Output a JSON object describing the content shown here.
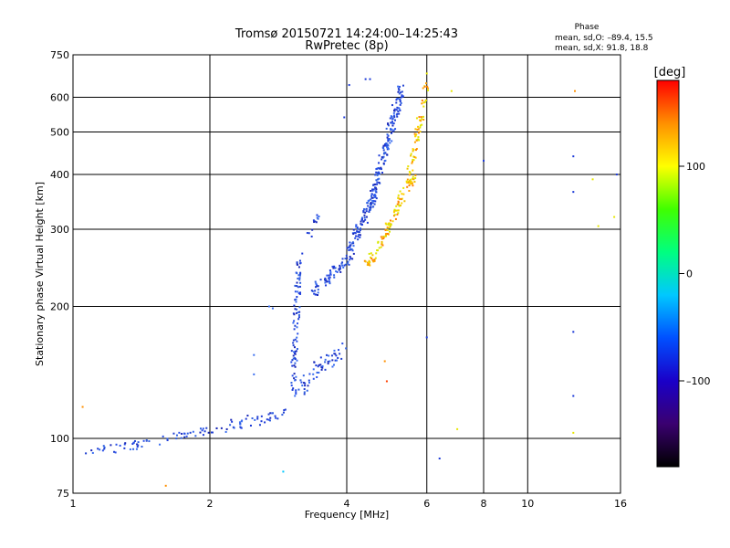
{
  "chart_data": {
    "type": "scatter",
    "title": "Tromsø 20150721 14:24:00–14:25:43",
    "subtitle": "RwPretec (8p)",
    "xlabel": "Frequency [MHz]",
    "ylabel": "Stationary phase Virtual Height [km]",
    "x_scale": "log",
    "y_scale": "log",
    "xlim": [
      1,
      16
    ],
    "ylim": [
      75,
      750
    ],
    "x_ticks": [
      1,
      2,
      4,
      6,
      8,
      10,
      16
    ],
    "x_tick_labels": [
      "1",
      "2",
      "4",
      "6",
      "8",
      "10",
      "16"
    ],
    "x_grid": [
      2,
      4,
      6,
      8,
      10
    ],
    "y_ticks": [
      75,
      100,
      200,
      300,
      400,
      500,
      600,
      750
    ],
    "y_tick_labels": [
      "75",
      "100",
      "200",
      "300",
      "400",
      "500",
      "600",
      "750"
    ],
    "y_grid": [
      100,
      200,
      300,
      400,
      500,
      600
    ],
    "grid": true,
    "stats": {
      "title": "Phase",
      "line_o": "mean, sd,O: –89.4, 15.5",
      "line_x": "mean, sd,X:  91.8, 18.8"
    },
    "colorbar": {
      "label": "[deg]",
      "range": [
        -180,
        180
      ],
      "ticks": [
        100,
        0,
        -100
      ],
      "tick_labels": [
        "100",
        "0",
        "–100"
      ],
      "stops": [
        "#000000",
        "#3a0070",
        "#1a00c8",
        "#0050ff",
        "#00c8ff",
        "#00ff80",
        "#40ff00",
        "#ffff00",
        "#ff9000",
        "#ff0000"
      ]
    },
    "series": [
      {
        "mode": "O",
        "color": "#1c3ad8",
        "segments": [
          {
            "x0": 1.05,
            "x1": 1.6,
            "y0": 92,
            "y1": 100,
            "count": 35,
            "jx": 0.04,
            "jy": 0.025
          },
          {
            "x0": 1.6,
            "x1": 2.2,
            "y0": 100,
            "y1": 106,
            "count": 30,
            "jx": 0.03,
            "jy": 0.02
          },
          {
            "x0": 2.2,
            "x1": 2.9,
            "y0": 106,
            "y1": 115,
            "count": 40,
            "jx": 0.03,
            "jy": 0.03
          },
          {
            "x0": 3.05,
            "x1": 3.15,
            "y0": 130,
            "y1": 255,
            "count": 90,
            "jx": 0.015,
            "jy": 0.05
          },
          {
            "x0": 3.15,
            "x1": 3.9,
            "y0": 130,
            "y1": 160,
            "count": 60,
            "jx": 0.03,
            "jy": 0.05
          },
          {
            "x0": 3.35,
            "x1": 4.1,
            "y0": 215,
            "y1": 260,
            "count": 70,
            "jx": 0.02,
            "jy": 0.025
          },
          {
            "x0": 4.0,
            "x1": 4.6,
            "y0": 265,
            "y1": 350,
            "count": 80,
            "jx": 0.02,
            "jy": 0.025
          },
          {
            "x0": 4.5,
            "x1": 5.3,
            "y0": 340,
            "y1": 640,
            "count": 160,
            "jx": 0.018,
            "jy": 0.025
          },
          {
            "x0": 3.3,
            "x1": 3.45,
            "y0": 290,
            "y1": 320,
            "count": 12,
            "jx": 0.01,
            "jy": 0.02
          }
        ]
      },
      {
        "mode": "X",
        "color": "#e6e600",
        "segments": [
          {
            "x0": 4.4,
            "x1": 5.0,
            "y0": 245,
            "y1": 300,
            "count": 50,
            "jx": 0.02,
            "jy": 0.02
          },
          {
            "x0": 4.9,
            "x1": 5.6,
            "y0": 300,
            "y1": 400,
            "count": 70,
            "jx": 0.02,
            "jy": 0.025
          },
          {
            "x0": 5.5,
            "x1": 6.0,
            "y0": 400,
            "y1": 640,
            "count": 60,
            "jx": 0.015,
            "jy": 0.025
          }
        ]
      }
    ],
    "scattered_points": [
      {
        "x": 4.4,
        "y": 660,
        "color": "#1c3ad8"
      },
      {
        "x": 4.5,
        "y": 660,
        "color": "#1c3ad8"
      },
      {
        "x": 3.95,
        "y": 540,
        "color": "#1c3ad8"
      },
      {
        "x": 4.05,
        "y": 640,
        "color": "#1c3ad8"
      },
      {
        "x": 8.0,
        "y": 430,
        "color": "#1c3ad8"
      },
      {
        "x": 12.6,
        "y": 440,
        "color": "#1c3ad8"
      },
      {
        "x": 12.6,
        "y": 365,
        "color": "#1c3ad8"
      },
      {
        "x": 15.7,
        "y": 400,
        "color": "#1c3ad8"
      },
      {
        "x": 12.6,
        "y": 175,
        "color": "#1c3ad8"
      },
      {
        "x": 12.6,
        "y": 125,
        "color": "#1c3ad8"
      },
      {
        "x": 6.4,
        "y": 90,
        "color": "#1c3ad8"
      },
      {
        "x": 6.0,
        "y": 170,
        "color": "#1c3ad8"
      },
      {
        "x": 2.7,
        "y": 200,
        "color": "#3a6ef0"
      },
      {
        "x": 2.75,
        "y": 198,
        "color": "#3a6ef0"
      },
      {
        "x": 2.5,
        "y": 155,
        "color": "#3a6ef0"
      },
      {
        "x": 2.5,
        "y": 140,
        "color": "#3a6ef0"
      },
      {
        "x": 1.6,
        "y": 78,
        "color": "#ff9000"
      },
      {
        "x": 1.05,
        "y": 118,
        "color": "#ff9000"
      },
      {
        "x": 2.9,
        "y": 84,
        "color": "#00c8ff"
      },
      {
        "x": 4.9,
        "y": 135,
        "color": "#ff4000"
      },
      {
        "x": 4.85,
        "y": 150,
        "color": "#ff9000"
      },
      {
        "x": 7.0,
        "y": 105,
        "color": "#e6e600"
      },
      {
        "x": 12.7,
        "y": 620,
        "color": "#ff9000"
      },
      {
        "x": 13.9,
        "y": 390,
        "color": "#e6e600"
      },
      {
        "x": 14.3,
        "y": 305,
        "color": "#e6e600"
      },
      {
        "x": 12.6,
        "y": 103,
        "color": "#e6e600"
      },
      {
        "x": 15.5,
        "y": 320,
        "color": "#e6e600"
      },
      {
        "x": 6.8,
        "y": 620,
        "color": "#e6e600"
      },
      {
        "x": 6.0,
        "y": 680,
        "color": "#e6e600"
      }
    ]
  }
}
